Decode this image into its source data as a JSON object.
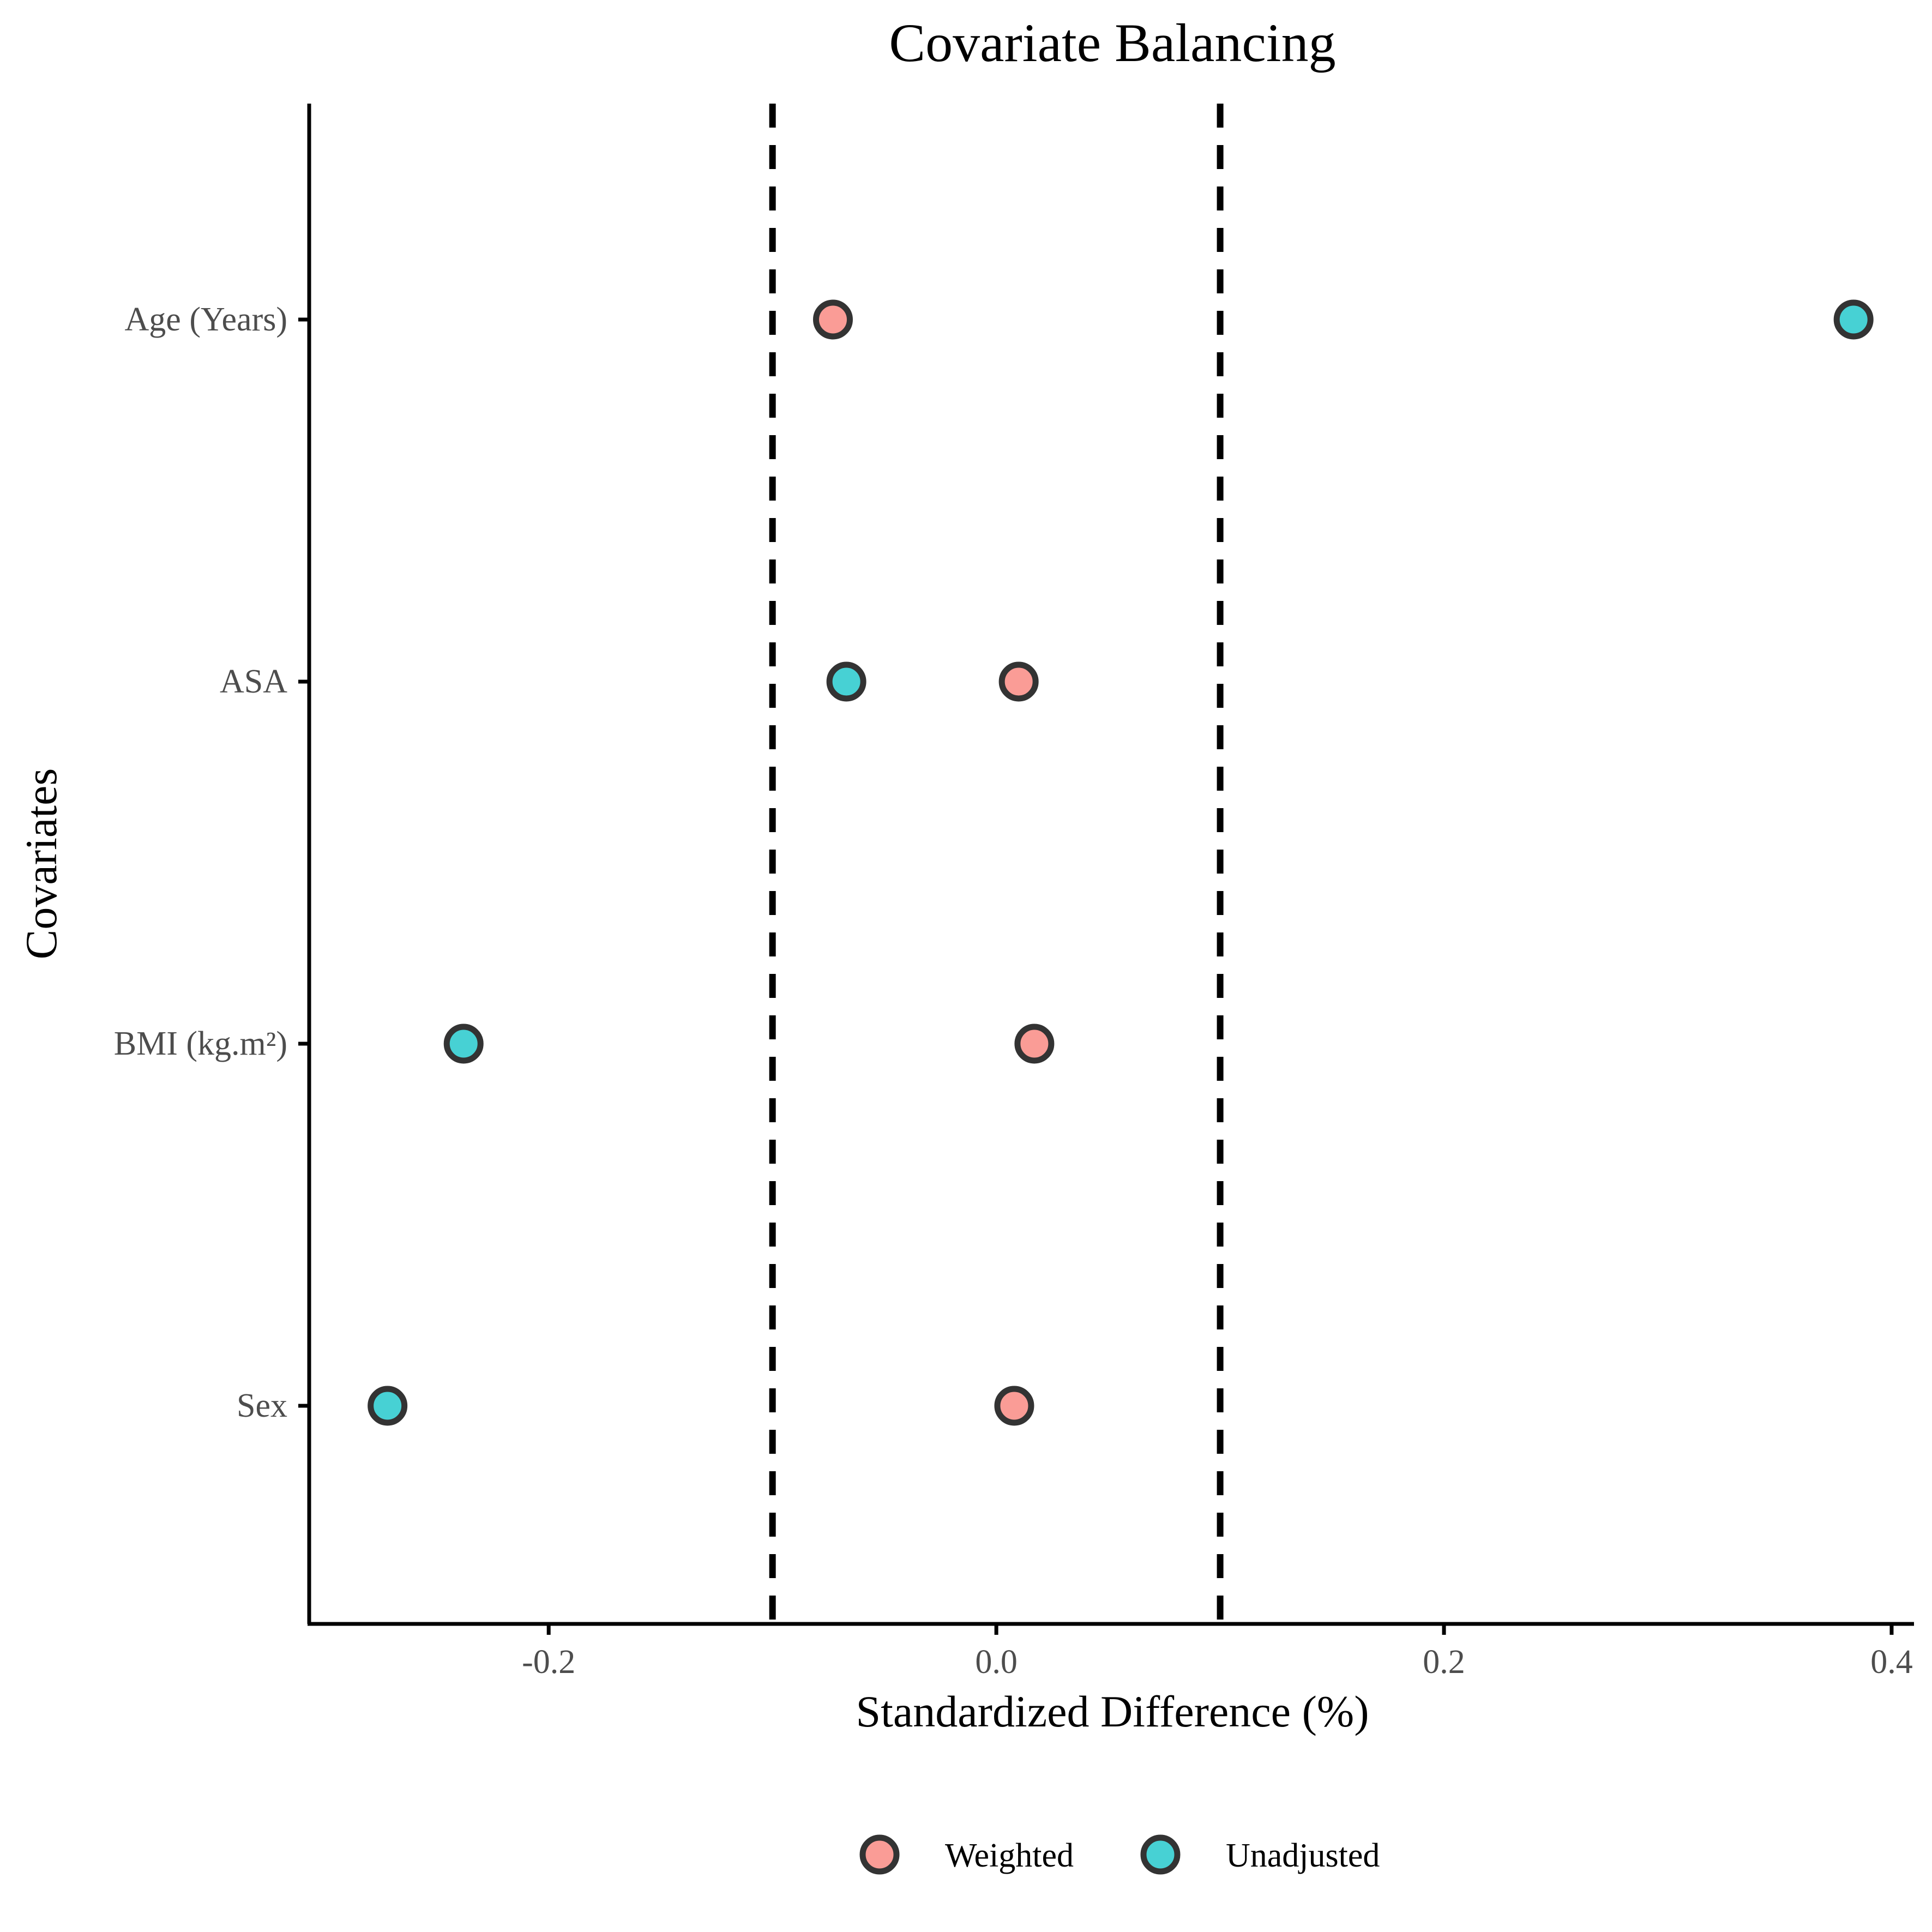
{
  "chart_data": {
    "type": "scatter",
    "title": "Covariate Balancing",
    "xlabel": "Standardized Difference (%)",
    "ylabel": "Covariates",
    "categories": [
      "Age (Years)",
      "ASA",
      "BMI (kg.m²)",
      "Sex"
    ],
    "xlim": [
      -0.307,
      0.41
    ],
    "xticks": [
      -0.2,
      0.0,
      0.2,
      0.4
    ],
    "xtick_labels": [
      "-0.2",
      "0.0",
      "0.2",
      "0.4"
    ],
    "reference_lines": [
      -0.1,
      0.1
    ],
    "series": [
      {
        "name": "Weighted",
        "color": "#F8766D",
        "values": [
          -0.073,
          0.01,
          0.017,
          0.008
        ]
      },
      {
        "name": "Unadjusted",
        "color": "#00BFC4",
        "values": [
          0.383,
          -0.067,
          -0.238,
          -0.272
        ]
      }
    ],
    "legend_position": "bottom",
    "grid": false
  }
}
